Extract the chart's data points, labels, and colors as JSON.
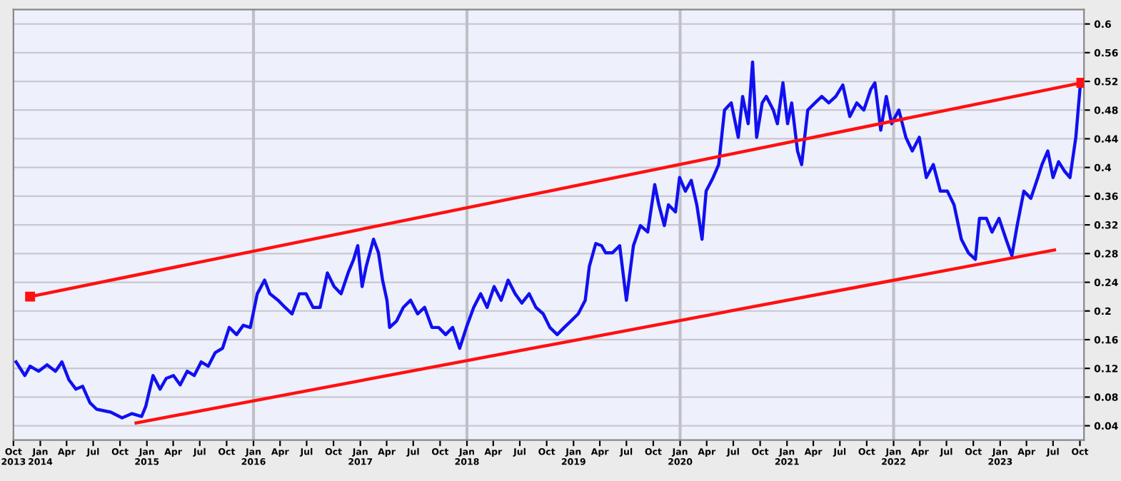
{
  "chart_data": {
    "type": "line",
    "series": [
      {
        "color": "#1010f0",
        "marker": "none",
        "x": [
          "2013-10-10",
          "2013-11-09",
          "2013-11-27",
          "2013-12-26",
          "2014-01-24",
          "2014-02-22",
          "2014-03-16",
          "2014-04-09",
          "2014-05-03",
          "2014-05-26",
          "2014-06-20",
          "2014-07-13",
          "2014-08-30",
          "2014-10-08",
          "2014-11-11",
          "2014-12-14",
          "2014-12-28",
          "2015-01-22",
          "2015-02-15",
          "2015-03-08",
          "2015-04-02",
          "2015-04-25",
          "2015-05-19",
          "2015-06-12",
          "2015-07-06",
          "2015-07-30",
          "2015-08-23",
          "2015-09-17",
          "2015-10-10",
          "2015-11-04",
          "2015-11-27",
          "2015-12-21",
          "2016-01-14",
          "2016-02-08",
          "2016-02-26",
          "2016-03-25",
          "2016-04-18",
          "2016-05-12",
          "2016-06-06",
          "2016-06-29",
          "2016-07-23",
          "2016-08-16",
          "2016-09-10",
          "2016-10-03",
          "2016-10-27",
          "2016-11-20",
          "2016-12-09",
          "2016-12-23",
          "2017-01-07",
          "2017-01-21",
          "2017-02-15",
          "2017-03-04",
          "2017-03-18",
          "2017-04-02",
          "2017-04-11",
          "2017-05-05",
          "2017-05-28",
          "2017-06-22",
          "2017-07-16",
          "2017-08-09",
          "2017-09-03",
          "2017-09-26",
          "2017-10-20",
          "2017-11-13",
          "2017-12-07",
          "2017-12-30",
          "2018-01-24",
          "2018-02-17",
          "2018-03-11",
          "2018-04-04",
          "2018-04-28",
          "2018-05-22",
          "2018-06-15",
          "2018-07-08",
          "2018-08-02",
          "2018-08-25",
          "2018-09-19",
          "2018-10-12",
          "2018-11-06",
          "2018-11-30",
          "2018-12-23",
          "2019-01-17",
          "2019-02-10",
          "2019-02-24",
          "2019-03-18",
          "2019-04-07",
          "2019-04-21",
          "2019-05-14",
          "2019-06-08",
          "2019-07-01",
          "2019-07-25",
          "2019-08-18",
          "2019-09-12",
          "2019-10-06",
          "2019-10-20",
          "2019-11-08",
          "2019-11-22",
          "2019-12-16",
          "2019-12-30",
          "2020-01-19",
          "2020-02-08",
          "2020-02-27",
          "2020-03-16",
          "2020-03-30",
          "2020-04-23",
          "2020-05-12",
          "2020-06-01",
          "2020-06-24",
          "2020-07-18",
          "2020-08-02",
          "2020-08-21",
          "2020-09-05",
          "2020-09-19",
          "2020-10-08",
          "2020-10-22",
          "2020-11-15",
          "2020-11-29",
          "2020-12-18",
          "2021-01-03",
          "2021-01-17",
          "2021-02-06",
          "2021-02-20",
          "2021-03-13",
          "2021-04-07",
          "2021-04-30",
          "2021-05-24",
          "2021-06-17",
          "2021-07-11",
          "2021-08-04",
          "2021-08-28",
          "2021-09-21",
          "2021-10-15",
          "2021-10-29",
          "2021-11-18",
          "2021-12-07",
          "2021-12-25",
          "2022-01-19",
          "2022-02-12",
          "2022-03-06",
          "2022-03-30",
          "2022-04-23",
          "2022-05-17",
          "2022-06-10",
          "2022-07-04",
          "2022-07-27",
          "2022-08-21",
          "2022-09-14",
          "2022-10-08",
          "2022-10-22",
          "2022-11-15",
          "2022-12-04",
          "2022-12-28",
          "2023-01-21",
          "2023-02-10",
          "2023-02-28",
          "2023-03-23",
          "2023-04-16",
          "2023-05-10",
          "2023-05-24",
          "2023-06-13",
          "2023-07-01",
          "2023-07-20",
          "2023-08-09",
          "2023-08-28",
          "2023-09-17",
          "2023-10-01"
        ],
        "values": [
          0.129,
          0.11,
          0.123,
          0.116,
          0.125,
          0.116,
          0.129,
          0.104,
          0.091,
          0.095,
          0.072,
          0.063,
          0.059,
          0.051,
          0.057,
          0.053,
          0.067,
          0.11,
          0.091,
          0.106,
          0.11,
          0.097,
          0.116,
          0.11,
          0.129,
          0.123,
          0.142,
          0.148,
          0.177,
          0.167,
          0.18,
          0.177,
          0.224,
          0.243,
          0.224,
          0.215,
          0.205,
          0.196,
          0.224,
          0.224,
          0.205,
          0.205,
          0.253,
          0.234,
          0.224,
          0.253,
          0.272,
          0.291,
          0.234,
          0.262,
          0.3,
          0.281,
          0.243,
          0.215,
          0.177,
          0.186,
          0.205,
          0.215,
          0.196,
          0.205,
          0.177,
          0.177,
          0.167,
          0.177,
          0.148,
          0.177,
          0.205,
          0.224,
          0.205,
          0.234,
          0.215,
          0.243,
          0.224,
          0.211,
          0.224,
          0.205,
          0.196,
          0.177,
          0.167,
          0.177,
          0.186,
          0.196,
          0.215,
          0.262,
          0.294,
          0.291,
          0.281,
          0.281,
          0.291,
          0.215,
          0.291,
          0.319,
          0.31,
          0.376,
          0.348,
          0.319,
          0.348,
          0.338,
          0.386,
          0.367,
          0.382,
          0.348,
          0.3,
          0.367,
          0.386,
          0.404,
          0.48,
          0.49,
          0.442,
          0.499,
          0.461,
          0.547,
          0.442,
          0.49,
          0.499,
          0.48,
          0.461,
          0.518,
          0.461,
          0.49,
          0.423,
          0.404,
          0.48,
          0.49,
          0.499,
          0.49,
          0.499,
          0.515,
          0.471,
          0.49,
          0.48,
          0.509,
          0.518,
          0.452,
          0.499,
          0.461,
          0.48,
          0.442,
          0.423,
          0.442,
          0.386,
          0.404,
          0.367,
          0.367,
          0.348,
          0.3,
          0.281,
          0.272,
          0.329,
          0.329,
          0.31,
          0.329,
          0.3,
          0.277,
          0.319,
          0.367,
          0.357,
          0.386,
          0.404,
          0.423,
          0.386,
          0.408,
          0.395,
          0.386,
          0.442,
          0.509
        ]
      },
      {
        "color": "#ff1010",
        "marker": "square",
        "x": [
          "2013-11-27",
          "2023-10-06"
        ],
        "values": [
          0.22,
          0.518
        ]
      },
      {
        "color": "#ff1010",
        "marker": "none",
        "x": [
          "2014-11-25",
          "2023-07-06"
        ],
        "values": [
          0.044,
          0.285
        ]
      }
    ],
    "xlim": [
      "2013-10-01",
      "2023-10-15"
    ],
    "xticks": [
      {
        "value": "2013-10-01",
        "label": "Oct\n2013"
      },
      {
        "value": "2014-01-01",
        "label": "Jan\n2014"
      },
      {
        "value": "2014-04-01",
        "label": "Apr"
      },
      {
        "value": "2014-07-01",
        "label": "Jul"
      },
      {
        "value": "2014-10-01",
        "label": "Oct"
      },
      {
        "value": "2015-01-01",
        "label": "Jan\n2015"
      },
      {
        "value": "2015-04-01",
        "label": "Apr"
      },
      {
        "value": "2015-07-01",
        "label": "Jul"
      },
      {
        "value": "2015-10-01",
        "label": "Oct"
      },
      {
        "value": "2016-01-01",
        "label": "Jan\n2016"
      },
      {
        "value": "2016-04-01",
        "label": "Apr"
      },
      {
        "value": "2016-07-01",
        "label": "Jul"
      },
      {
        "value": "2016-10-01",
        "label": "Oct"
      },
      {
        "value": "2017-01-01",
        "label": "Jan\n2017"
      },
      {
        "value": "2017-04-01",
        "label": "Apr"
      },
      {
        "value": "2017-07-01",
        "label": "Jul"
      },
      {
        "value": "2017-10-01",
        "label": "Oct"
      },
      {
        "value": "2018-01-01",
        "label": "Jan\n2018"
      },
      {
        "value": "2018-04-01",
        "label": "Apr"
      },
      {
        "value": "2018-07-01",
        "label": "Jul"
      },
      {
        "value": "2018-10-01",
        "label": "Oct"
      },
      {
        "value": "2019-01-01",
        "label": "Jan\n2019"
      },
      {
        "value": "2019-04-01",
        "label": "Apr"
      },
      {
        "value": "2019-07-01",
        "label": "Jul"
      },
      {
        "value": "2019-10-01",
        "label": "Oct"
      },
      {
        "value": "2020-01-01",
        "label": "Jan\n2020"
      },
      {
        "value": "2020-04-01",
        "label": "Apr"
      },
      {
        "value": "2020-07-01",
        "label": "Jul"
      },
      {
        "value": "2020-10-01",
        "label": "Oct"
      },
      {
        "value": "2021-01-01",
        "label": "Jan\n2021"
      },
      {
        "value": "2021-04-01",
        "label": "Apr"
      },
      {
        "value": "2021-07-01",
        "label": "Jul"
      },
      {
        "value": "2021-10-01",
        "label": "Oct"
      },
      {
        "value": "2022-01-01",
        "label": "Jan\n2022"
      },
      {
        "value": "2022-04-01",
        "label": "Apr"
      },
      {
        "value": "2022-07-01",
        "label": "Jul"
      },
      {
        "value": "2022-10-01",
        "label": "Oct"
      },
      {
        "value": "2023-01-01",
        "label": "Jan\n2023"
      },
      {
        "value": "2023-04-01",
        "label": "Apr"
      },
      {
        "value": "2023-07-01",
        "label": "Jul"
      },
      {
        "value": "2023-10-01",
        "label": "Oct"
      }
    ],
    "ylim": [
      0.02,
      0.62
    ],
    "yticks": [
      0.04,
      0.08,
      0.12,
      0.16,
      0.2,
      0.24,
      0.28,
      0.32,
      0.36,
      0.4,
      0.44,
      0.48,
      0.52,
      0.56,
      0.6
    ],
    "grid": "y",
    "ref_lines": [
      {
        "axis": "x",
        "value": "2016-01-01",
        "color": "#c0c0c8"
      },
      {
        "axis": "x",
        "value": "2018-01-01",
        "color": "#c0c0c8"
      },
      {
        "axis": "x",
        "value": "2020-01-01",
        "color": "#c0c0c8"
      },
      {
        "axis": "x",
        "value": "2022-01-01",
        "color": "#c0c0c8"
      }
    ],
    "legend": false
  }
}
